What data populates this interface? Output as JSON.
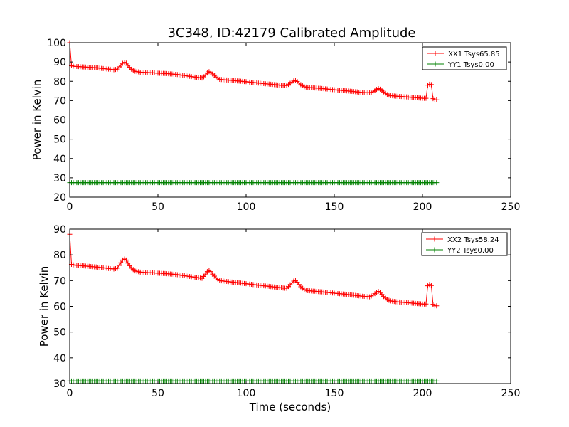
{
  "figure_title": "3C348, ID:42179 Calibrated Amplitude",
  "colors": {
    "xx": "#ff0000",
    "yy": "#008000",
    "axes": "#000000",
    "background": "#ffffff"
  },
  "chart_data": [
    {
      "type": "line",
      "title": "3C348, ID:42179 Calibrated Amplitude",
      "xlabel": "",
      "ylabel": "Power in Kelvin",
      "xlim": [
        0,
        250
      ],
      "ylim": [
        20,
        100
      ],
      "xticks": [
        0,
        50,
        100,
        150,
        200,
        250
      ],
      "yticks": [
        20,
        30,
        40,
        50,
        60,
        70,
        80,
        90,
        100
      ],
      "grid": false,
      "legend_position": "top-right",
      "series": [
        {
          "name": "XX1 Tsys65.85",
          "color": "#ff0000",
          "marker": "+",
          "points": [
            [
              0,
              100
            ],
            [
              1,
              88
            ],
            [
              3,
              87.7
            ],
            [
              5,
              87.6
            ],
            [
              10,
              87.3
            ],
            [
              15,
              87
            ],
            [
              20,
              86.5
            ],
            [
              25,
              86
            ],
            [
              27,
              86.3
            ],
            [
              28,
              87.5
            ],
            [
              30,
              89.3
            ],
            [
              31,
              89.8
            ],
            [
              32,
              89.4
            ],
            [
              33,
              88.3
            ],
            [
              35,
              86.2
            ],
            [
              37,
              85.2
            ],
            [
              40,
              84.7
            ],
            [
              45,
              84.5
            ],
            [
              50,
              84.2
            ],
            [
              55,
              84
            ],
            [
              60,
              83.6
            ],
            [
              65,
              83
            ],
            [
              70,
              82.3
            ],
            [
              75,
              81.7
            ],
            [
              76,
              82.3
            ],
            [
              78,
              84.3
            ],
            [
              79,
              85
            ],
            [
              80,
              84.6
            ],
            [
              81,
              83.8
            ],
            [
              83,
              82.2
            ],
            [
              85,
              81
            ],
            [
              90,
              80.6
            ],
            [
              95,
              80.2
            ],
            [
              100,
              79.8
            ],
            [
              105,
              79.3
            ],
            [
              110,
              78.8
            ],
            [
              115,
              78.4
            ],
            [
              120,
              77.9
            ],
            [
              123,
              77.8
            ],
            [
              125,
              79
            ],
            [
              127,
              80.2
            ],
            [
              128,
              80.4
            ],
            [
              129,
              79.9
            ],
            [
              131,
              78.3
            ],
            [
              133,
              77.2
            ],
            [
              135,
              76.8
            ],
            [
              140,
              76.5
            ],
            [
              145,
              76.1
            ],
            [
              150,
              75.6
            ],
            [
              155,
              75.2
            ],
            [
              160,
              74.8
            ],
            [
              165,
              74.3
            ],
            [
              170,
              74
            ],
            [
              172,
              74.6
            ],
            [
              174,
              75.8
            ],
            [
              175,
              76.2
            ],
            [
              176,
              75.9
            ],
            [
              178,
              74.5
            ],
            [
              180,
              73.1
            ],
            [
              182,
              72.6
            ],
            [
              185,
              72.3
            ],
            [
              190,
              72
            ],
            [
              195,
              71.6
            ],
            [
              200,
              71.2
            ],
            [
              202,
              71.2
            ],
            [
              203,
              78
            ],
            [
              204,
              78.5
            ],
            [
              205,
              78.3
            ],
            [
              206,
              71
            ],
            [
              207,
              70.4
            ],
            [
              208,
              70.4
            ]
          ]
        },
        {
          "name": "YY1 Tsys0.00",
          "color": "#008000",
          "marker": "+",
          "points": [
            [
              0,
              27.5
            ],
            [
              208,
              27.5
            ]
          ]
        }
      ]
    },
    {
      "type": "line",
      "title": "",
      "xlabel": "Time (seconds)",
      "ylabel": "Power in Kelvin",
      "xlim": [
        0,
        250
      ],
      "ylim": [
        30,
        90
      ],
      "xticks": [
        0,
        50,
        100,
        150,
        200,
        250
      ],
      "yticks": [
        30,
        40,
        50,
        60,
        70,
        80,
        90
      ],
      "grid": false,
      "legend_position": "top-right",
      "series": [
        {
          "name": "XX2 Tsys58.24",
          "color": "#ff0000",
          "marker": "+",
          "points": [
            [
              0,
              88
            ],
            [
              1,
              76.3
            ],
            [
              3,
              76
            ],
            [
              5,
              75.9
            ],
            [
              10,
              75.6
            ],
            [
              15,
              75.3
            ],
            [
              20,
              74.9
            ],
            [
              25,
              74.5
            ],
            [
              27,
              74.8
            ],
            [
              28,
              75.9
            ],
            [
              30,
              78
            ],
            [
              31,
              78.4
            ],
            [
              32,
              78
            ],
            [
              33,
              76.8
            ],
            [
              35,
              74.8
            ],
            [
              37,
              73.8
            ],
            [
              40,
              73.3
            ],
            [
              45,
              73.1
            ],
            [
              50,
              72.9
            ],
            [
              55,
              72.7
            ],
            [
              60,
              72.4
            ],
            [
              65,
              71.9
            ],
            [
              70,
              71.4
            ],
            [
              75,
              70.9
            ],
            [
              76,
              71.6
            ],
            [
              78,
              73.5
            ],
            [
              79,
              74
            ],
            [
              80,
              73.5
            ],
            [
              81,
              72.5
            ],
            [
              83,
              71
            ],
            [
              85,
              70
            ],
            [
              90,
              69.6
            ],
            [
              95,
              69.2
            ],
            [
              100,
              68.8
            ],
            [
              105,
              68.4
            ],
            [
              110,
              68
            ],
            [
              115,
              67.6
            ],
            [
              120,
              67.2
            ],
            [
              123,
              67
            ],
            [
              125,
              68.4
            ],
            [
              127,
              69.8
            ],
            [
              128,
              70
            ],
            [
              129,
              69.4
            ],
            [
              131,
              67.6
            ],
            [
              133,
              66.5
            ],
            [
              135,
              66.1
            ],
            [
              140,
              65.8
            ],
            [
              145,
              65.5
            ],
            [
              150,
              65.1
            ],
            [
              155,
              64.8
            ],
            [
              160,
              64.4
            ],
            [
              165,
              64
            ],
            [
              170,
              63.7
            ],
            [
              172,
              64.4
            ],
            [
              174,
              65.5
            ],
            [
              175,
              65.8
            ],
            [
              176,
              65.4
            ],
            [
              178,
              63.8
            ],
            [
              180,
              62.6
            ],
            [
              182,
              62.1
            ],
            [
              185,
              61.8
            ],
            [
              190,
              61.5
            ],
            [
              195,
              61.2
            ],
            [
              200,
              60.9
            ],
            [
              202,
              60.9
            ],
            [
              203,
              68
            ],
            [
              204,
              68.5
            ],
            [
              205,
              68.1
            ],
            [
              206,
              60.8
            ],
            [
              207,
              60.2
            ],
            [
              208,
              60.2
            ]
          ]
        },
        {
          "name": "YY2 Tsys0.00",
          "color": "#008000",
          "marker": "+",
          "points": [
            [
              0,
              31
            ],
            [
              208,
              31
            ]
          ]
        }
      ]
    }
  ]
}
